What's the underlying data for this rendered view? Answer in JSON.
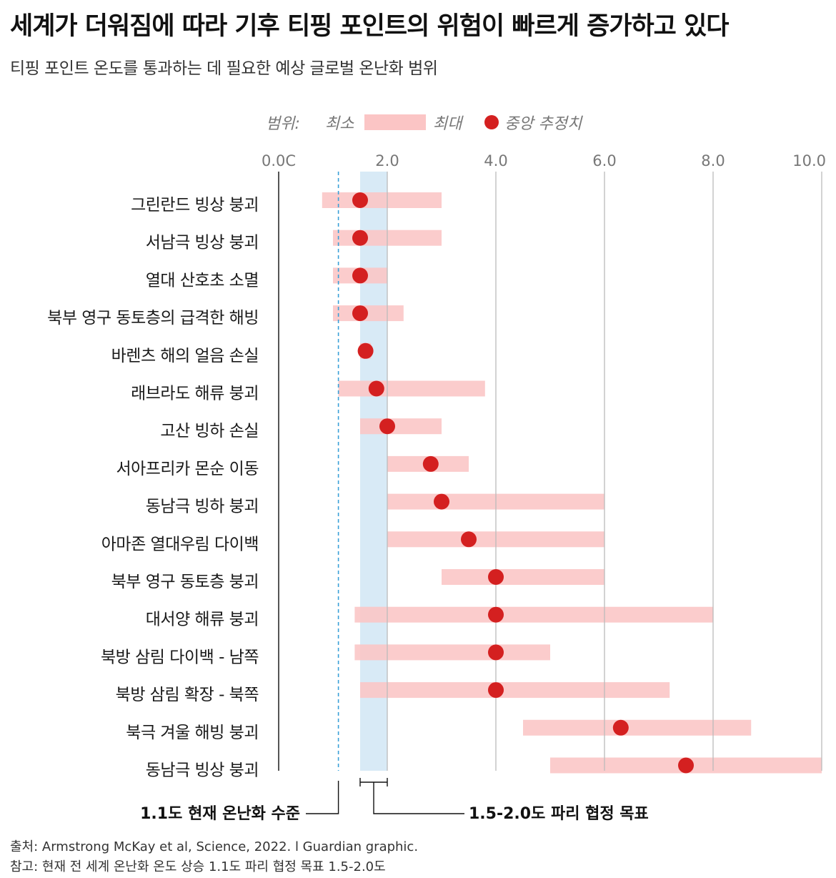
{
  "title": "세계가 더워짐에 따라 기후 티핑 포인트의 위험이 빠르게 증가하고 있다",
  "subtitle": "티핑 포인트 온도를 통과하는 데 필요한 예상 글로벌 온난화 범위",
  "legend": {
    "range_label": "범위:",
    "min_label": "최소",
    "max_label": "최대",
    "median_label": "중앙 추정치"
  },
  "annotations": {
    "current": "1.1도 현재 온난화 수준",
    "paris": "1.5-2.0도 파리 협정 목표"
  },
  "footer": {
    "source": "출처: Armstrong McKay et al, Science, 2022. l Guardian graphic.",
    "note": "참고: 현재 전 세계 온난화 온도 상승 1.1도 파리 협정 목표 1.5-2.0도"
  },
  "colors": {
    "range_bar": "#fbc5c5",
    "median_dot": "#d42020",
    "paris_band": "#d8eaf6",
    "current_line": "#3aa0d8"
  },
  "chart_data": {
    "type": "range-dot",
    "xlim": [
      0,
      10
    ],
    "xticks": [
      0,
      2,
      4,
      6,
      8,
      10
    ],
    "xtick_labels": [
      "0.0C",
      "2.0",
      "4.0",
      "6.0",
      "8.0",
      "10.0"
    ],
    "reference_line": 1.1,
    "reference_band": [
      1.5,
      2.0
    ],
    "items": [
      {
        "name": "그린란드 빙상 붕괴",
        "min": 0.8,
        "max": 3.0,
        "median": 1.5
      },
      {
        "name": "서남극 빙상 붕괴",
        "min": 1.0,
        "max": 3.0,
        "median": 1.5
      },
      {
        "name": "열대 산호초 소멸",
        "min": 1.0,
        "max": 2.0,
        "median": 1.5
      },
      {
        "name": "북부 영구 동토층의 급격한 해빙",
        "min": 1.0,
        "max": 2.3,
        "median": 1.5
      },
      {
        "name": "바렌츠 해의 얼음 손실",
        "min": 1.5,
        "max": 1.7,
        "median": 1.6
      },
      {
        "name": "래브라도 해류 붕괴",
        "min": 1.1,
        "max": 3.8,
        "median": 1.8
      },
      {
        "name": "고산 빙하 손실",
        "min": 1.5,
        "max": 3.0,
        "median": 2.0
      },
      {
        "name": "서아프리카 몬순 이동",
        "min": 2.0,
        "max": 3.5,
        "median": 2.8
      },
      {
        "name": "동남극 빙하 붕괴",
        "min": 2.0,
        "max": 6.0,
        "median": 3.0
      },
      {
        "name": "아마존 열대우림 다이백",
        "min": 2.0,
        "max": 6.0,
        "median": 3.5
      },
      {
        "name": "북부 영구 동토층 붕괴",
        "min": 3.0,
        "max": 6.0,
        "median": 4.0
      },
      {
        "name": "대서양 해류 붕괴",
        "min": 1.4,
        "max": 8.0,
        "median": 4.0
      },
      {
        "name": "북방 삼림 다이백 - 남쪽",
        "min": 1.4,
        "max": 5.0,
        "median": 4.0
      },
      {
        "name": "북방 삼림 확장 - 북쪽",
        "min": 1.5,
        "max": 7.2,
        "median": 4.0
      },
      {
        "name": "북극 겨울 해빙 붕괴",
        "min": 4.5,
        "max": 8.7,
        "median": 6.3
      },
      {
        "name": "동남극 빙상 붕괴",
        "min": 5.0,
        "max": 10.0,
        "median": 7.5
      }
    ]
  }
}
